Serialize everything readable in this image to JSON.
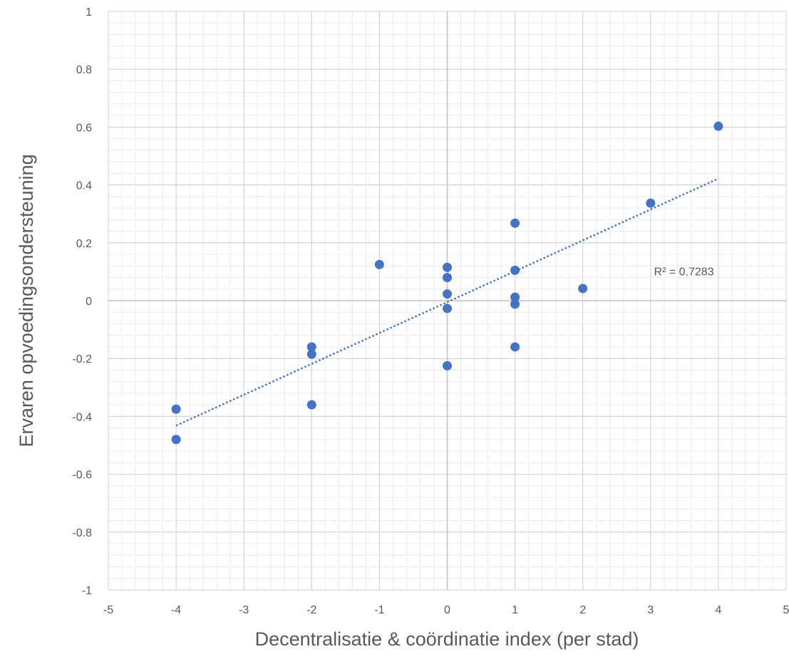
{
  "chart_data": {
    "type": "scatter",
    "title": "",
    "xlabel": "Decentralisatie & coördinatie index (per stad)",
    "ylabel": "Ervaren opvoedingsondersteuning",
    "xlim": [
      -5,
      5
    ],
    "ylim": [
      -1,
      1
    ],
    "x_ticks": [
      -5,
      -4,
      -3,
      -2,
      -1,
      0,
      1,
      2,
      3,
      4,
      5
    ],
    "y_ticks": [
      -1,
      -0.8,
      -0.6,
      -0.4,
      -0.2,
      0,
      0.2,
      0.4,
      0.6,
      0.8,
      1
    ],
    "x_tick_labels": [
      "-5",
      "-4",
      "-3",
      "-2",
      "-1",
      "0",
      "1",
      "2",
      "3",
      "4",
      "5"
    ],
    "y_tick_labels": [
      "-1",
      "-0.8",
      "-0.6",
      "-0.4",
      "-0.2",
      "0",
      "0.2",
      "0.4",
      "0.6",
      "0.8",
      "1"
    ],
    "grid": {
      "major": true,
      "minor": true
    },
    "series": [
      {
        "points": [
          {
            "x": -4,
            "y": -0.375
          },
          {
            "x": -4,
            "y": -0.48
          },
          {
            "x": -2,
            "y": -0.16
          },
          {
            "x": -2,
            "y": -0.185
          },
          {
            "x": -2,
            "y": -0.36
          },
          {
            "x": -1,
            "y": 0.125
          },
          {
            "x": 0,
            "y": 0.115
          },
          {
            "x": 0,
            "y": 0.08
          },
          {
            "x": 0,
            "y": 0.023
          },
          {
            "x": 0,
            "y": -0.027
          },
          {
            "x": 0,
            "y": -0.225
          },
          {
            "x": 1,
            "y": 0.268
          },
          {
            "x": 1,
            "y": 0.105
          },
          {
            "x": 1,
            "y": 0.012
          },
          {
            "x": 1,
            "y": -0.012
          },
          {
            "x": 1,
            "y": -0.16
          },
          {
            "x": 2,
            "y": 0.042
          },
          {
            "x": 3,
            "y": 0.337
          },
          {
            "x": 4,
            "y": 0.603
          }
        ]
      }
    ],
    "trendline": {
      "type": "linear",
      "style": "dotted",
      "from": {
        "x": -4,
        "y": -0.432
      },
      "to": {
        "x": 4,
        "y": 0.422
      },
      "r_squared_label": "R² = 0.7283",
      "label_anchor": {
        "x": 3.05,
        "y": 0.088
      }
    },
    "colors": {
      "marker": "#4472C4",
      "trendline": "#4472C4",
      "major_grid": "#D0D0D0",
      "minor_grid": "#ECECEC",
      "axis_line": "#BFBFBF",
      "text": "#595959"
    }
  }
}
